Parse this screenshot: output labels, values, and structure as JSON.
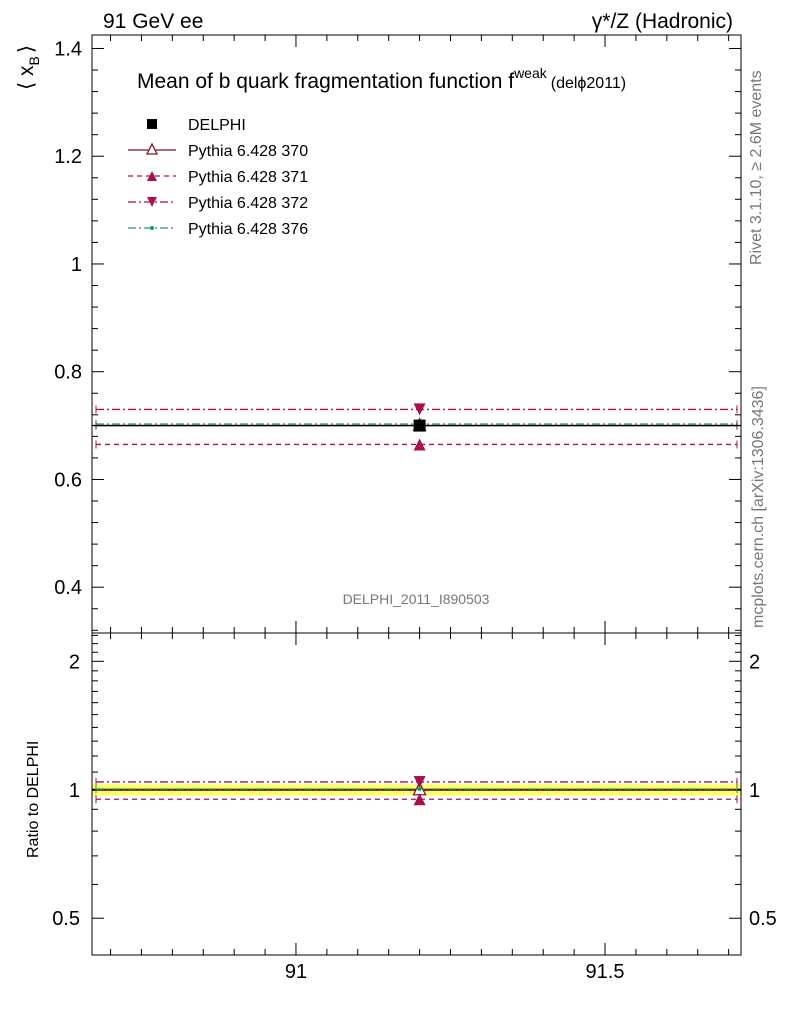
{
  "header": {
    "left": "91 GeV ee",
    "right": "γ*/Z (Hadronic)"
  },
  "side": {
    "rivet": "Rivet 3.1.10, ≥ 2.6M events",
    "mcplots": "mcplots.cern.ch [arXiv:1306.3436]"
  },
  "chart_data": [
    {
      "type": "scatter",
      "title": "Mean of b quark fragmentation function f",
      "title_sup": "weak",
      "title_suffix": "(delϕ2011)",
      "ylabel": "⟨ x",
      "ylabel_sub": "B",
      "ylabel_end": "⟩",
      "ylim": [
        0.315,
        1.425
      ],
      "yticks": [
        0.4,
        0.6,
        0.8,
        1,
        1.2,
        1.4
      ],
      "ytick_labels": [
        "0.4",
        "0.6",
        "0.8",
        "1",
        "1.2",
        "1.4"
      ],
      "xlim": [
        90.67,
        91.72
      ],
      "watermark": "DELPHI_2011_I890503",
      "legend_position": "top-left",
      "series": [
        {
          "name": "DELPHI",
          "x": 91.2,
          "xerr": [
            90.67,
            91.72
          ],
          "y": 0.7,
          "color": "#000000",
          "marker": "square-filled",
          "line": "none"
        },
        {
          "name": "Pythia 6.428 370",
          "x": 91.2,
          "xerr": [
            90.67,
            91.72
          ],
          "y": 0.7,
          "color": "#7f1427",
          "marker": "triangle-up-open",
          "line": "solid"
        },
        {
          "name": "Pythia 6.428 371",
          "x": 91.2,
          "xerr": [
            90.67,
            91.72
          ],
          "y": 0.665,
          "color": "#a8114f",
          "marker": "triangle-up-filled",
          "line": "dashed"
        },
        {
          "name": "Pythia 6.428 372",
          "x": 91.2,
          "xerr": [
            90.67,
            91.72
          ],
          "y": 0.73,
          "color": "#a8114f",
          "marker": "triangle-down-filled",
          "line": "dashdot"
        },
        {
          "name": "Pythia 6.428 376",
          "x": 91.2,
          "xerr": [
            90.67,
            91.72
          ],
          "y": 0.703,
          "color": "#1a9a6c",
          "marker": "dot",
          "line": "dashdot"
        }
      ]
    },
    {
      "type": "scatter",
      "ylabel": "Ratio to DELPHI",
      "log_y": true,
      "ylim": [
        0.41,
        2.33
      ],
      "yticks": [
        0.5,
        1,
        2
      ],
      "ytick_labels": [
        "0.5",
        "1",
        "2"
      ],
      "xlim": [
        90.67,
        91.72
      ],
      "xticks": [
        91,
        91.5
      ],
      "xtick_labels": [
        "91",
        "91.5"
      ],
      "band": {
        "low": 0.97,
        "high": 1.03,
        "color": "#ffff66"
      },
      "series": [
        {
          "name": "Pythia 6.428 370",
          "y": 1.0,
          "color": "#7f1427",
          "marker": "triangle-up-open",
          "line": "solid"
        },
        {
          "name": "Pythia 6.428 371",
          "y": 0.95,
          "color": "#a8114f",
          "marker": "triangle-up-filled",
          "line": "dashed"
        },
        {
          "name": "Pythia 6.428 372",
          "y": 1.043,
          "color": "#a8114f",
          "marker": "triangle-down-filled",
          "line": "dashdot"
        },
        {
          "name": "Pythia 6.428 376",
          "y": 1.004,
          "color": "#1a9a6c",
          "marker": "dot",
          "line": "dashdot"
        }
      ]
    }
  ]
}
